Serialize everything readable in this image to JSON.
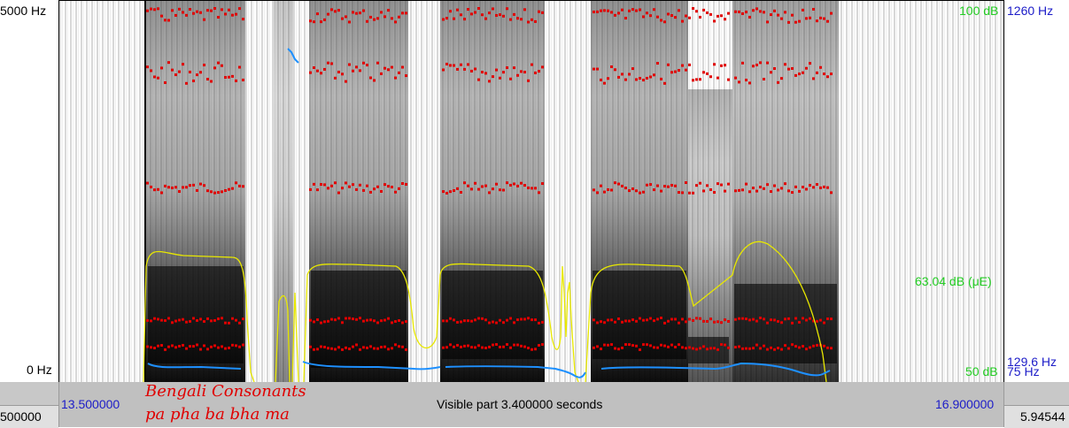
{
  "axis_left": {
    "top_label": "5000 Hz",
    "bottom_label": "0 Hz"
  },
  "axis_right": {
    "intensity_top": "100 dB",
    "intensity_mid": "63.04 dB (μE)",
    "intensity_bottom": "50 dB",
    "pitch_top": "1260 Hz",
    "pitch_mid": "129.6 Hz",
    "pitch_bottom": "75 Hz"
  },
  "time_bar": {
    "start_time": "13.500000",
    "end_time": "16.900000",
    "visible_part": "Visible part 3.400000 seconds",
    "left_cell": "500000",
    "right_cell": "5.94544"
  },
  "caption": {
    "line1": "Bengali Consonants",
    "line2": "pa pha ba bha ma"
  },
  "colors": {
    "formant": "#e00000",
    "pitch": "#1e90ff",
    "intensity": "#e8e800",
    "intensity_label": "#22cc22",
    "pitch_label": "#1c1cc8"
  }
}
